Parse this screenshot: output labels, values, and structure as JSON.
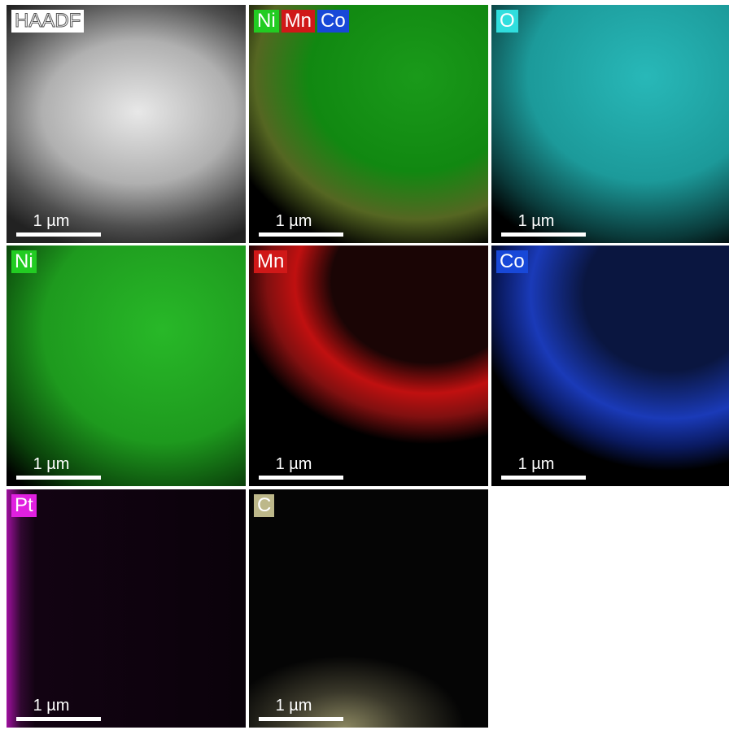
{
  "scale_bar_label": "1 µm",
  "panels": [
    {
      "labels": [
        "HAADF"
      ],
      "colors": [
        "#ffffff"
      ]
    },
    {
      "labels": [
        "Ni",
        "Mn",
        "Co"
      ],
      "colors": [
        "#22cc22",
        "#d01818",
        "#1848d8"
      ]
    },
    {
      "labels": [
        "O"
      ],
      "colors": [
        "#30dede"
      ]
    },
    {
      "labels": [
        "Ni"
      ],
      "colors": [
        "#22cc22"
      ]
    },
    {
      "labels": [
        "Mn"
      ],
      "colors": [
        "#d01818"
      ]
    },
    {
      "labels": [
        "Co"
      ],
      "colors": [
        "#1848d8"
      ]
    },
    {
      "labels": [
        "Pt"
      ],
      "colors": [
        "#e020e0"
      ]
    },
    {
      "labels": [
        "C"
      ],
      "colors": [
        "#bdb88a"
      ]
    }
  ]
}
